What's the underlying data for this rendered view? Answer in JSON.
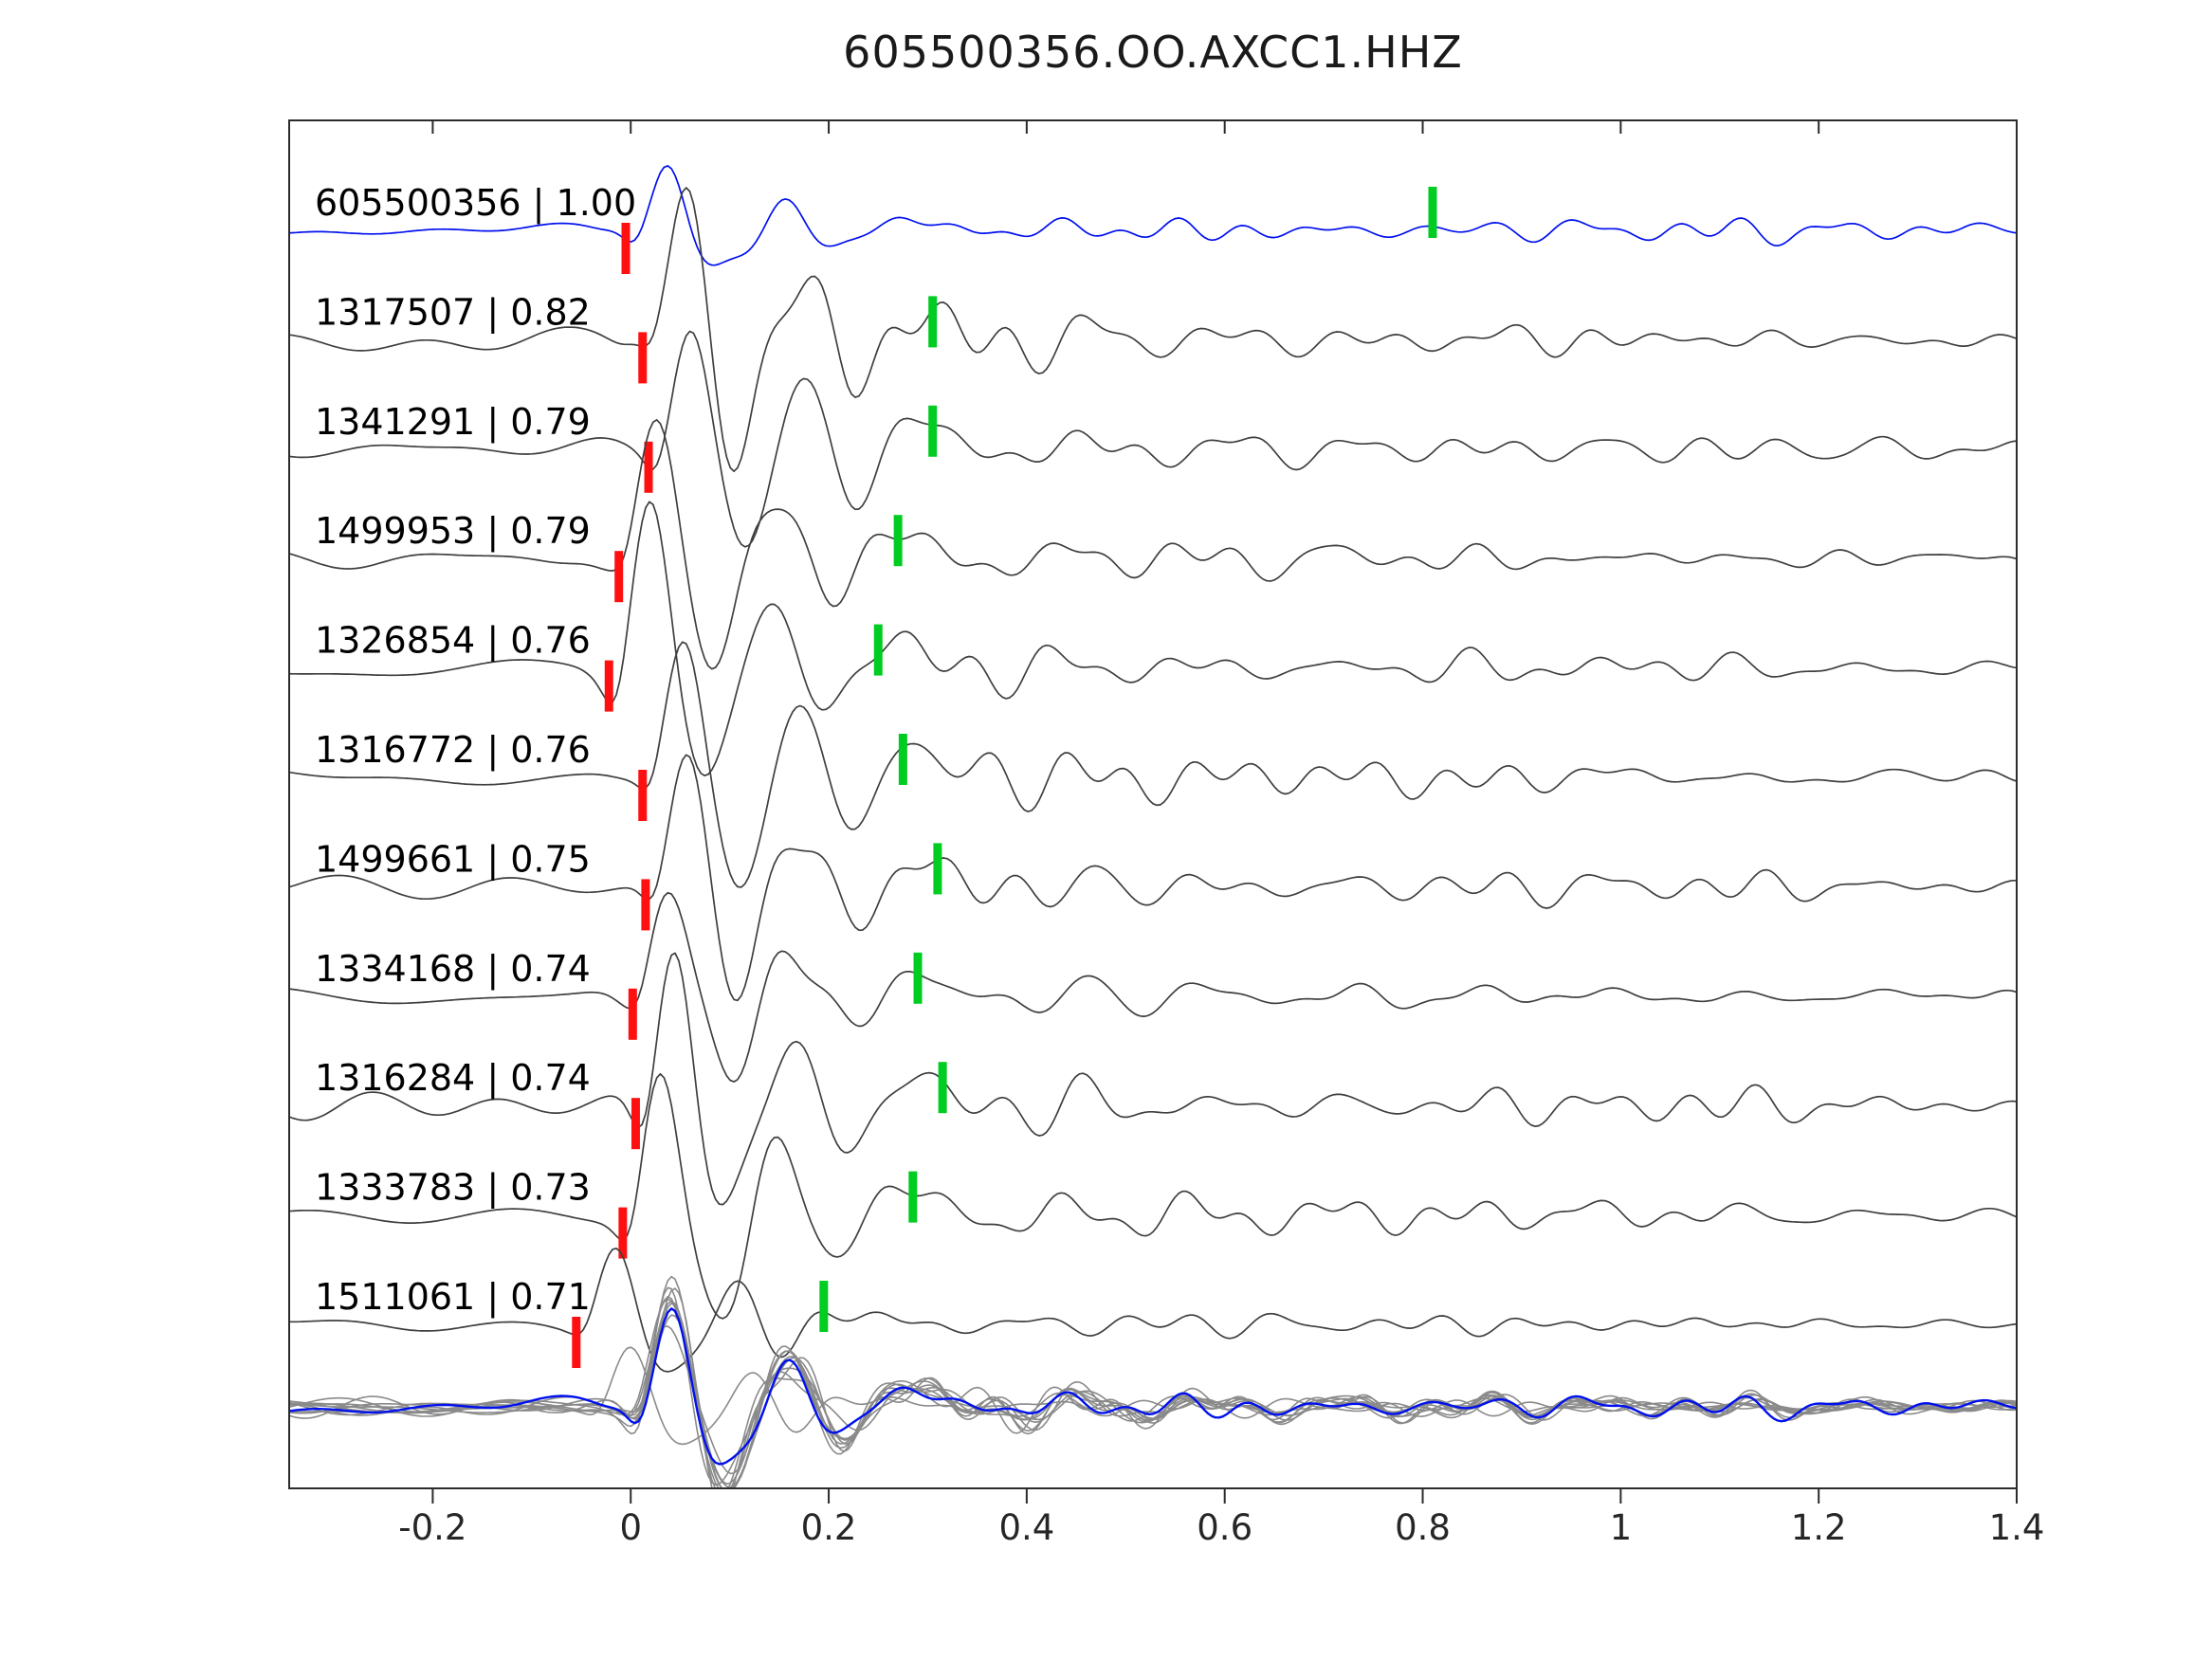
{
  "title": "605500356.OO.AXCC1.HHZ",
  "chart_data": {
    "type": "line",
    "title": "605500356.OO.AXCC1.HHZ",
    "xlabel": "",
    "ylabel": "",
    "grid": false,
    "legend": "none",
    "xlim": [
      -0.345,
      1.4
    ],
    "xticks": [
      {
        "value": -0.2,
        "label": "-0.2"
      },
      {
        "value": 0.0,
        "label": "0"
      },
      {
        "value": 0.2,
        "label": "0.2"
      },
      {
        "value": 0.4,
        "label": "0.4"
      },
      {
        "value": 0.6,
        "label": "0.6"
      },
      {
        "value": 0.8,
        "label": "0.8"
      },
      {
        "value": 1.0,
        "label": "1"
      },
      {
        "value": 1.2,
        "label": "1.2"
      },
      {
        "value": 1.4,
        "label": "1.4"
      }
    ],
    "trace_colors": {
      "reference": "#0010ee",
      "match": "#3f3f3f",
      "overlay": "#8a8a8a"
    },
    "pick_colors": {
      "pick_primary": "#ff1010",
      "pick_secondary": "#00cc22"
    },
    "traces": [
      {
        "id": "605500356",
        "corr": 1.0,
        "label": "605500356 | 1.00",
        "role": "reference",
        "red_pick": -0.005,
        "green_pick": 0.81,
        "amp": 0.45
      },
      {
        "id": "1317507",
        "corr": 0.82,
        "label": "1317507 | 0.82",
        "role": "match",
        "red_pick": 0.012,
        "green_pick": 0.305,
        "amp": 1.05
      },
      {
        "id": "1341291",
        "corr": 0.79,
        "label": "1341291 | 0.79",
        "role": "match",
        "red_pick": 0.018,
        "green_pick": 0.305,
        "amp": 1.0
      },
      {
        "id": "1499953",
        "corr": 0.79,
        "label": "1499953 | 0.79",
        "role": "match",
        "red_pick": -0.012,
        "green_pick": 0.27,
        "amp": 0.95
      },
      {
        "id": "1326854",
        "corr": 0.76,
        "label": "1326854 | 0.76",
        "role": "match",
        "red_pick": -0.022,
        "green_pick": 0.25,
        "amp": 1.0
      },
      {
        "id": "1316772",
        "corr": 0.76,
        "label": "1316772 | 0.76",
        "role": "match",
        "red_pick": 0.012,
        "green_pick": 0.275,
        "amp": 1.0
      },
      {
        "id": "1499661",
        "corr": 0.75,
        "label": "1499661 | 0.75",
        "role": "match",
        "red_pick": 0.015,
        "green_pick": 0.31,
        "amp": 0.95
      },
      {
        "id": "1334168",
        "corr": 0.74,
        "label": "1334168 | 0.74",
        "role": "match",
        "red_pick": 0.002,
        "green_pick": 0.29,
        "amp": 0.9
      },
      {
        "id": "1316284",
        "corr": 0.74,
        "label": "1316284 | 0.74",
        "role": "match",
        "red_pick": 0.005,
        "green_pick": 0.315,
        "amp": 1.0
      },
      {
        "id": "1333783",
        "corr": 0.73,
        "label": "1333783 | 0.73",
        "role": "match",
        "red_pick": -0.008,
        "green_pick": 0.285,
        "amp": 0.95
      },
      {
        "id": "1511061",
        "corr": 0.71,
        "label": "1511061 | 0.71",
        "role": "match",
        "red_pick": -0.055,
        "green_pick": 0.195,
        "amp": 0.55
      }
    ],
    "overlay": {
      "aligned_at": 0,
      "includes_reference": true
    }
  }
}
